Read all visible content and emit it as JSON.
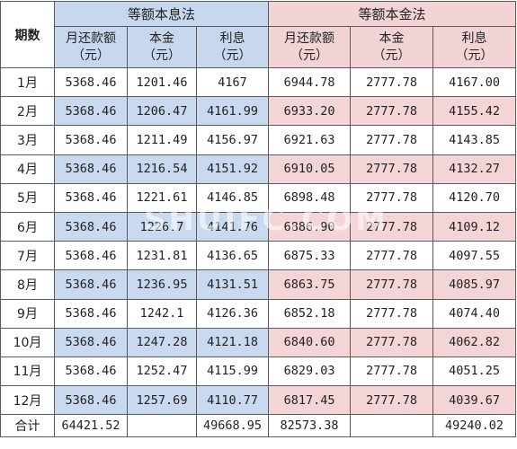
{
  "table": {
    "period_header": "期数",
    "groups": [
      {
        "title": "等额本息法",
        "cols": [
          [
            "月还款额",
            "（元）"
          ],
          [
            "本金",
            "（元）"
          ],
          [
            "利息",
            "（元）"
          ]
        ]
      },
      {
        "title": "等额本金法",
        "cols": [
          [
            "月还款额",
            "（元）"
          ],
          [
            "本金",
            "（元）"
          ],
          [
            "利息",
            "（元）"
          ]
        ]
      }
    ],
    "rows": [
      [
        "1月",
        "5368.46",
        "1201.46",
        "4167",
        "6944.78",
        "2777.78",
        "4167.00"
      ],
      [
        "2月",
        "5368.46",
        "1206.47",
        "4161.99",
        "6933.20",
        "2777.78",
        "4155.42"
      ],
      [
        "3月",
        "5368.46",
        "1211.49",
        "4156.97",
        "6921.63",
        "2777.78",
        "4143.85"
      ],
      [
        "4月",
        "5368.46",
        "1216.54",
        "4151.92",
        "6910.05",
        "2777.78",
        "4132.27"
      ],
      [
        "5月",
        "5368.46",
        "1221.61",
        "4146.85",
        "6898.48",
        "2777.78",
        "4120.70"
      ],
      [
        "6月",
        "5368.46",
        "1226.7",
        "4141.76",
        "6886.90",
        "2777.78",
        "4109.12"
      ],
      [
        "7月",
        "5368.46",
        "1231.81",
        "4136.65",
        "6875.33",
        "2777.78",
        "4097.55"
      ],
      [
        "8月",
        "5368.46",
        "1236.95",
        "4131.51",
        "6863.75",
        "2777.78",
        "4085.97"
      ],
      [
        "9月",
        "5368.46",
        "1242.1",
        "4126.36",
        "6852.18",
        "2777.78",
        "4074.40"
      ],
      [
        "10月",
        "5368.46",
        "1247.28",
        "4121.18",
        "6840.60",
        "2777.78",
        "4062.82"
      ],
      [
        "11月",
        "5368.46",
        "1252.47",
        "4115.99",
        "6829.03",
        "2777.78",
        "4051.25"
      ],
      [
        "12月",
        "5368.46",
        "1257.69",
        "4110.77",
        "6817.45",
        "2777.78",
        "4039.67"
      ]
    ],
    "total": [
      "合计",
      "64421.52",
      "",
      "49668.95",
      "82573.38",
      "",
      "49240.02"
    ]
  },
  "watermark": "SHUIFC.COM",
  "colors": {
    "group_a_fill": "#c7d8ee",
    "group_b_fill": "#f2d3d6",
    "border": "#5a5a5a"
  }
}
